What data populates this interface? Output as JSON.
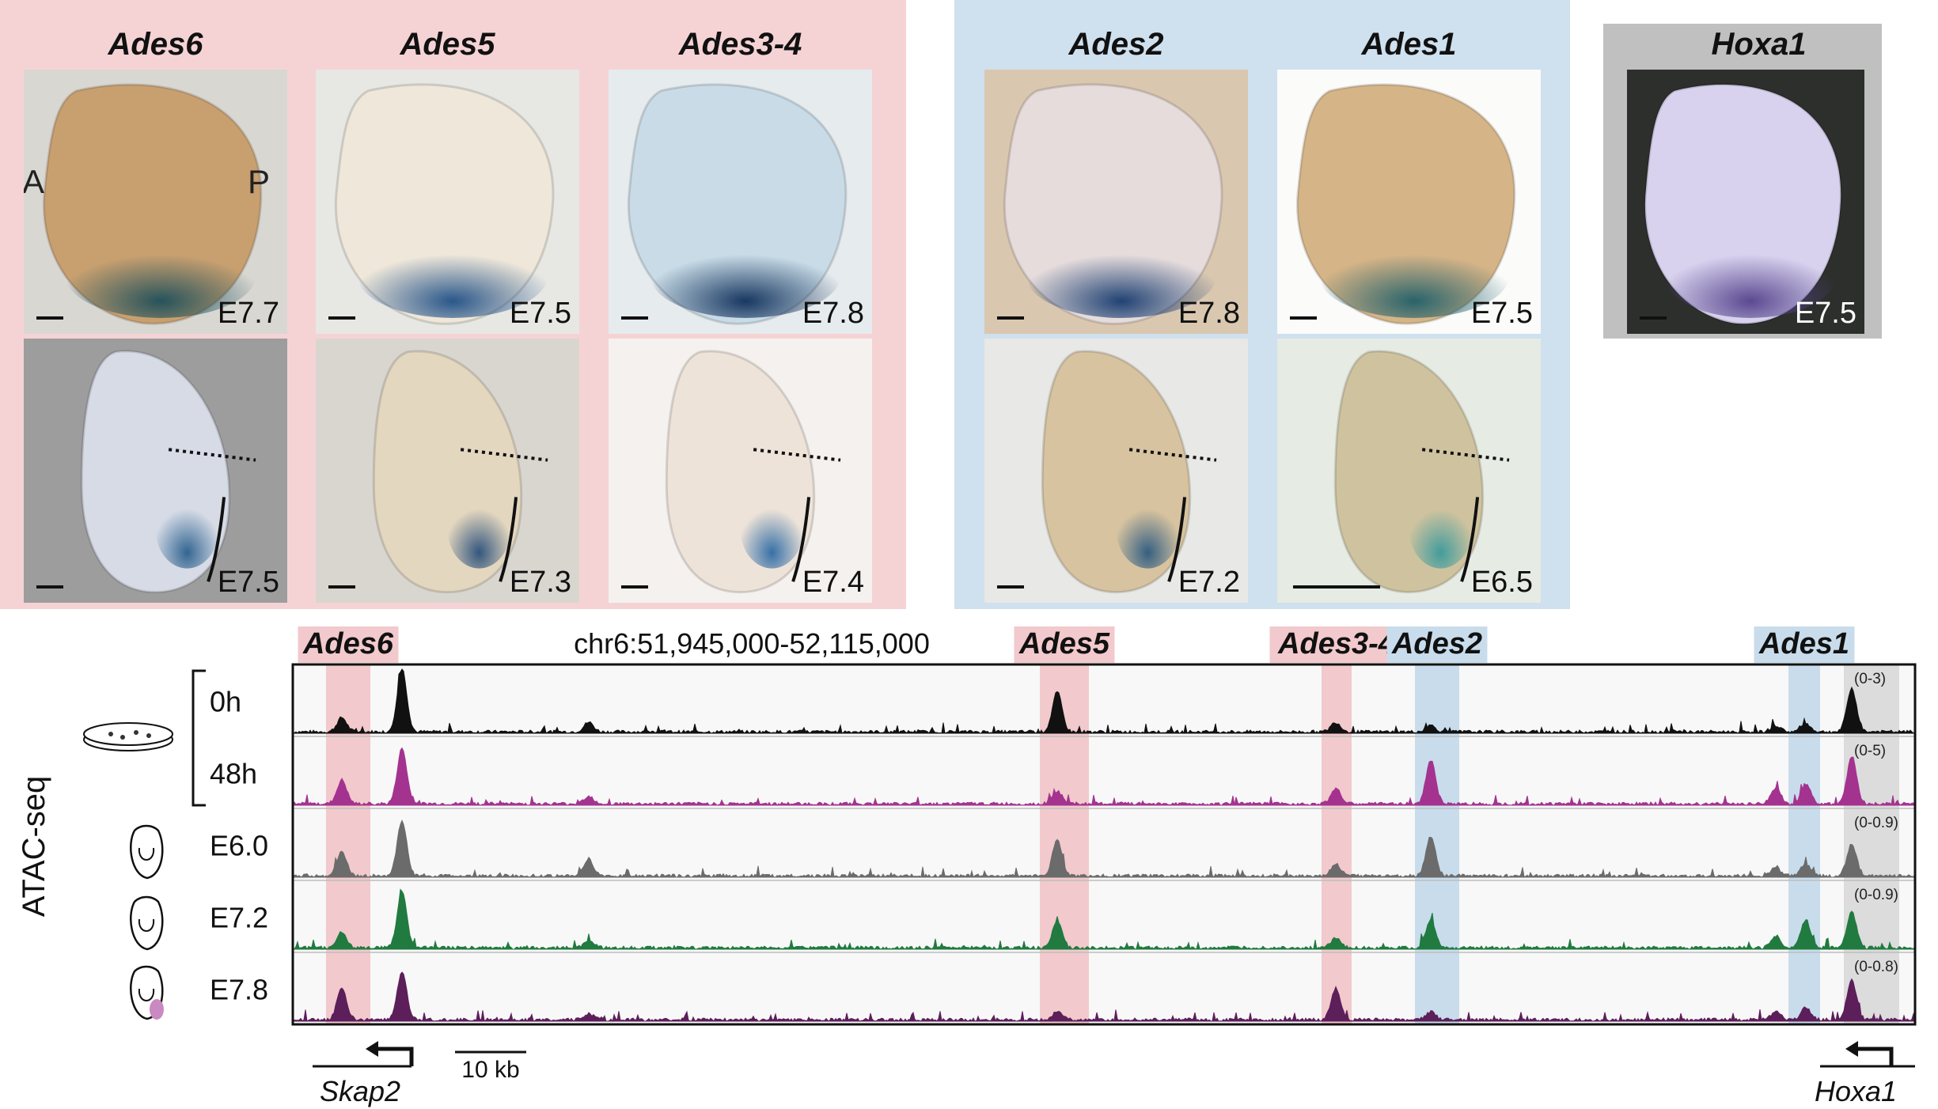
{
  "groups": [
    {
      "id": "pink",
      "color": "#f5d3d5"
    },
    {
      "id": "blue",
      "color": "#cfe0ee"
    },
    {
      "id": "grey",
      "color": "#c0c0c0"
    }
  ],
  "columns": [
    {
      "id": "ades6",
      "name": "Ades6",
      "group": "pink",
      "top": {
        "stage": "E7.7",
        "bg": "#d9d7d2",
        "tissue": "#c8a070",
        "stain": "#1d4f5a",
        "letters": [
          "A",
          "P"
        ]
      },
      "bottom": {
        "stage": "E7.5",
        "bg": "#9d9d9d",
        "tissue": "#d6dbe6",
        "stain": "#2a5f8d"
      }
    },
    {
      "id": "ades5",
      "name": "Ades5",
      "group": "pink",
      "top": {
        "stage": "E7.5",
        "bg": "#e7e7e3",
        "tissue": "#eee7da",
        "stain": "#1f4f86"
      },
      "bottom": {
        "stage": "E7.3",
        "bg": "#d9d6cf",
        "tissue": "#e4d7bf",
        "stain": "#2a4f7a"
      }
    },
    {
      "id": "ades3-4",
      "name": "Ades3-4",
      "group": "pink",
      "top": {
        "stage": "E7.8",
        "bg": "#e6ebee",
        "tissue": "#c8dbe6",
        "stain": "#0f2f5a"
      },
      "bottom": {
        "stage": "E7.4",
        "bg": "#f4f1ee",
        "tissue": "#eee3d8",
        "stain": "#2d6aa4"
      }
    },
    {
      "id": "ades2",
      "name": "Ades2",
      "group": "blue",
      "top": {
        "stage": "E7.8",
        "bg": "#d9c7b0",
        "tissue": "#e6dcdc",
        "stain": "#163a6e"
      },
      "bottom": {
        "stage": "E7.2",
        "bg": "#e8e8e6",
        "tissue": "#d7c3a0",
        "stain": "#2c5a80"
      }
    },
    {
      "id": "ades1",
      "name": "Ades1",
      "group": "blue",
      "top": {
        "stage": "E7.5",
        "bg": "#fbfbfa",
        "tissue": "#d5b487",
        "stain": "#1f5f6a"
      },
      "bottom": {
        "stage": "E6.5",
        "bg": "#e6ece3",
        "tissue": "#cfc39f",
        "stain": "#3b9a9c"
      }
    },
    {
      "id": "hoxa1",
      "name": "Hoxa1",
      "group": "grey",
      "top": {
        "stage": "E7.5",
        "bg": "#2d2f2c",
        "tissue": "#d8d2ee",
        "stain": "#54428c"
      }
    }
  ],
  "atac": {
    "assay_label": "ATAC-seq",
    "coordinates": "chr6:51,945,000-52,115,000",
    "regions": [
      {
        "name": "Ades6",
        "type": "pink"
      },
      {
        "name": "Ades5",
        "type": "pink"
      },
      {
        "name": "Ades3-4",
        "type": "pink"
      },
      {
        "name": "Ades2",
        "type": "blue"
      },
      {
        "name": "Ades1",
        "type": "blue"
      }
    ],
    "region_colors": {
      "pink": "#f2c9cc",
      "blue": "#c8dcec",
      "grey": "#dcdcdc"
    },
    "tracks": [
      {
        "label": "0h",
        "range": "(0-3)",
        "color": "#111111",
        "icon": "dish"
      },
      {
        "label": "48h",
        "range": "(0-5)",
        "color": "#a3338f",
        "icon": ""
      },
      {
        "label": "E6.0",
        "range": "(0-0.9)",
        "color": "#6b6b6b",
        "icon": "embryo-e6"
      },
      {
        "label": "E7.2",
        "range": "(0-0.9)",
        "color": "#217a3f",
        "icon": "embryo-e72"
      },
      {
        "label": "E7.8",
        "range": "(0-0.8)",
        "color": "#5c1f5a",
        "icon": "embryo-e78"
      }
    ],
    "genes": {
      "left": "Skap2",
      "right": "Hoxa1"
    },
    "scale": "10 kb"
  }
}
